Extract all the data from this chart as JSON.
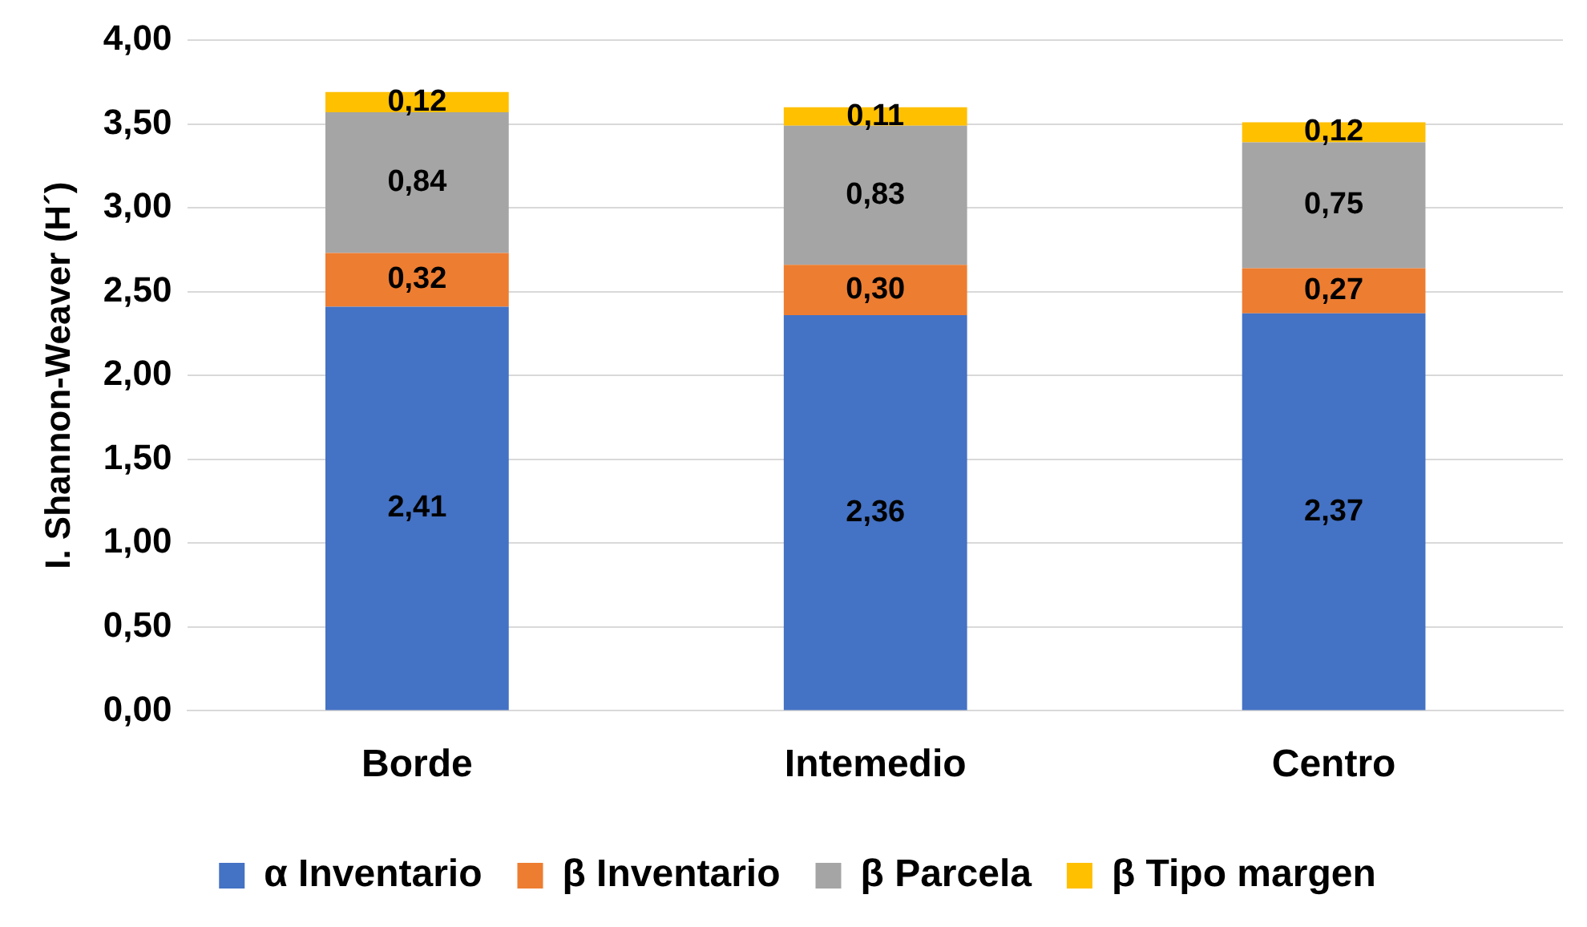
{
  "chart_data": {
    "type": "bar",
    "stacked": true,
    "ylabel": "I. Shannon-Weaver (H´)",
    "categories": [
      "Borde",
      "Intemedio",
      "Centro"
    ],
    "series": [
      {
        "name": "α Inventario",
        "color": "#4472c4",
        "values": [
          2.41,
          2.36,
          2.37
        ],
        "value_labels": [
          "2,41",
          "2,36",
          "2,37"
        ]
      },
      {
        "name": "β Inventario",
        "color": "#ed7d31",
        "values": [
          0.32,
          0.3,
          0.27
        ],
        "value_labels": [
          "0,32",
          "0,30",
          "0,27"
        ]
      },
      {
        "name": "β Parcela",
        "color": "#a5a5a5",
        "values": [
          0.84,
          0.83,
          0.75
        ],
        "value_labels": [
          "0,84",
          "0,83",
          "0,75"
        ]
      },
      {
        "name": "β Tipo margen",
        "color": "#ffc000",
        "values": [
          0.12,
          0.11,
          0.12
        ],
        "value_labels": [
          "0,12",
          "0,11",
          "0,12"
        ]
      }
    ],
    "ylim": [
      0,
      4
    ],
    "yticks": [
      {
        "value": 0,
        "label": "0,00"
      },
      {
        "value": 0.5,
        "label": "0,50"
      },
      {
        "value": 1,
        "label": "1,00"
      },
      {
        "value": 1.5,
        "label": "1,50"
      },
      {
        "value": 2,
        "label": "2,00"
      },
      {
        "value": 2.5,
        "label": "2,50"
      },
      {
        "value": 3,
        "label": "3,00"
      },
      {
        "value": 3.5,
        "label": "3,50"
      },
      {
        "value": 4,
        "label": "4,00"
      }
    ],
    "grid": "y",
    "legend": "bottom"
  }
}
